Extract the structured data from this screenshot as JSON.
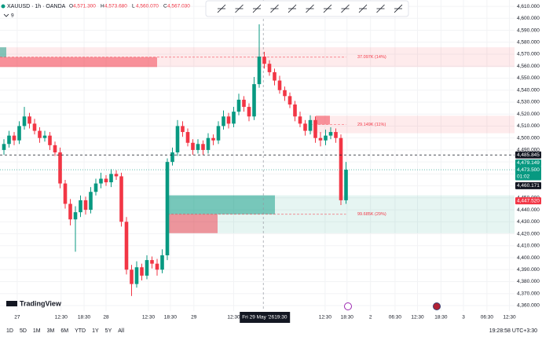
{
  "header": {
    "symbol": "XAUUSD · 1h · OANDA",
    "ohlc": [
      {
        "key": "O",
        "value": "4,571.300"
      },
      {
        "key": "H",
        "value": "4,573.680"
      },
      {
        "key": "L",
        "value": "4,560.070"
      },
      {
        "key": "C",
        "value": "4,567.030"
      }
    ],
    "indicator_count": "9"
  },
  "chart_data": {
    "type": "candlestick",
    "up_color": "#089981",
    "down_color": "#f23645",
    "grid": true,
    "open": [
      4490,
      4495,
      4502,
      4498,
      4510,
      4518,
      4512,
      4506,
      4500,
      4502,
      4494,
      4488,
      4462,
      4445,
      4432,
      4438,
      4448,
      4440,
      4455,
      4462,
      4466,
      4463,
      4470,
      4468,
      4430,
      4390,
      4378,
      4392,
      4385,
      4398,
      4395,
      4390,
      4402,
      4480,
      4488,
      4510,
      4505,
      4496,
      4490,
      4495,
      4490,
      4500,
      4498,
      4510,
      4518,
      4512,
      4522,
      4532,
      4526,
      4518,
      4545,
      4568,
      4562,
      4555,
      4548,
      4540,
      4535,
      4528,
      4518,
      4512,
      4506,
      4515,
      4500,
      4498,
      4502,
      4505,
      4500,
      4448
    ],
    "high": [
      4499,
      4506,
      4505,
      4514,
      4526,
      4521,
      4516,
      4509,
      4506,
      4505,
      4497,
      4492,
      4465,
      4449,
      4443,
      4452,
      4451,
      4459,
      4466,
      4471,
      4469,
      4474,
      4473,
      4471,
      4434,
      4394,
      4397,
      4395,
      4402,
      4401,
      4399,
      4407,
      4483,
      4492,
      4515,
      4514,
      4508,
      4499,
      4499,
      4498,
      4504,
      4503,
      4514,
      4523,
      4521,
      4526,
      4537,
      4535,
      4529,
      4551,
      4595,
      4572,
      4565,
      4558,
      4552,
      4543,
      4538,
      4531,
      4522,
      4515,
      4519,
      4518,
      4505,
      4507,
      4509,
      4508,
      4503,
      4480
    ],
    "low": [
      4486,
      4492,
      4494,
      4495,
      4507,
      4508,
      4503,
      4496,
      4497,
      4490,
      4485,
      4458,
      4441,
      4427,
      4405,
      4434,
      4436,
      4437,
      4452,
      4458,
      4460,
      4459,
      4465,
      4426,
      4386,
      4368,
      4375,
      4381,
      4382,
      4391,
      4385,
      4387,
      4398,
      4477,
      4485,
      4501,
      4493,
      4486,
      4487,
      4486,
      4487,
      4494,
      4495,
      4507,
      4508,
      4509,
      4519,
      4522,
      4514,
      4515,
      4542,
      4558,
      4552,
      4544,
      4537,
      4531,
      4525,
      4514,
      4509,
      4502,
      4503,
      4496,
      4493,
      4494,
      4499,
      4496,
      4444,
      4445
    ],
    "close": [
      4495,
      4502,
      4498,
      4510,
      4518,
      4512,
      4506,
      4500,
      4502,
      4494,
      4488,
      4462,
      4445,
      4432,
      4438,
      4448,
      4440,
      4455,
      4462,
      4466,
      4463,
      4470,
      4468,
      4430,
      4390,
      4378,
      4392,
      4385,
      4398,
      4395,
      4390,
      4402,
      4480,
      4488,
      4510,
      4505,
      4496,
      4490,
      4495,
      4490,
      4500,
      4498,
      4510,
      4518,
      4512,
      4522,
      4532,
      4526,
      4518,
      4545,
      4568,
      4562,
      4555,
      4548,
      4540,
      4535,
      4528,
      4518,
      4512,
      4506,
      4515,
      4500,
      4498,
      4502,
      4505,
      4500,
      4448,
      4473.5
    ],
    "xlim": [
      -0.77,
      100
    ],
    "xticks": [
      {
        "value": 2.6,
        "label": "27"
      },
      {
        "value": 11.2,
        "label": "12:30"
      },
      {
        "value": 15.7,
        "label": "18:30"
      },
      {
        "value": 20,
        "label": "28"
      },
      {
        "value": 28.3,
        "label": "12:30"
      },
      {
        "value": 32.6,
        "label": "18:30"
      },
      {
        "value": 37.2,
        "label": "29"
      },
      {
        "value": 45,
        "label": "12:30"
      },
      {
        "value": 62.9,
        "label": "12:30"
      },
      {
        "value": 67.2,
        "label": "18:30"
      },
      {
        "value": 71.8,
        "label": "2"
      },
      {
        "value": 76.6,
        "label": "06:30"
      },
      {
        "value": 81,
        "label": "12:30"
      },
      {
        "value": 85.6,
        "label": "18:30"
      },
      {
        "value": 90,
        "label": "3"
      },
      {
        "value": 94.6,
        "label": "06:30"
      },
      {
        "value": 99,
        "label": "12:30"
      }
    ],
    "ylim": [
      4355.4,
      4615.3
    ],
    "yticks": [
      {
        "value": 4360,
        "label": "4,360.000"
      },
      {
        "value": 4370,
        "label": "4,370.000"
      },
      {
        "value": 4380,
        "label": "4,380.000"
      },
      {
        "value": 4390,
        "label": "4,390.000"
      },
      {
        "value": 4400,
        "label": "4,400.000"
      },
      {
        "value": 4410,
        "label": "4,410.000"
      },
      {
        "value": 4420,
        "label": "4,420.000"
      },
      {
        "value": 4430,
        "label": "4,430.000"
      },
      {
        "value": 4440,
        "label": "4,440.000"
      },
      {
        "value": 4450,
        "label": "4,450.000"
      },
      {
        "value": 4460,
        "label": "4,460.000"
      },
      {
        "value": 4470,
        "label": "4,470.000"
      },
      {
        "value": 4480,
        "label": "4,480.000"
      },
      {
        "value": 4490,
        "label": "4,490.000"
      },
      {
        "value": 4500,
        "label": "4,500.000"
      },
      {
        "value": 4510,
        "label": "4,510.000"
      },
      {
        "value": 4520,
        "label": "4,520.000"
      },
      {
        "value": 4530,
        "label": "4,530.000"
      },
      {
        "value": 4540,
        "label": "4,540.000"
      },
      {
        "value": 4550,
        "label": "4,550.000"
      },
      {
        "value": 4560,
        "label": "4,560.000"
      },
      {
        "value": 4570,
        "label": "4,570.000"
      },
      {
        "value": 4580,
        "label": "4,580.000"
      },
      {
        "value": 4590,
        "label": "4,590.000"
      },
      {
        "value": 4600,
        "label": "4,600.000"
      },
      {
        "value": 4610,
        "label": "4,610.000"
      }
    ],
    "zones": [
      {
        "from": -0.77,
        "low": 4559.3,
        "high": 4575.8,
        "label": "37.097K (14%)",
        "color": "#f23645"
      },
      {
        "from": 60,
        "low": 4504,
        "high": 4518.6,
        "label": "29.149K (11%)",
        "color": "#f23645"
      },
      {
        "from": 32,
        "low": 4420.5,
        "high": 4452.1,
        "label": "99.685K (29%)",
        "color": "#089981"
      }
    ],
    "price_labels": [
      {
        "value": 4485.845,
        "label": "4,485.845",
        "color": "#131722",
        "line": "dashed"
      },
      {
        "value": 4479.149,
        "label": "4,479.149",
        "color": "#089981"
      },
      {
        "value": 4473.5,
        "label": "4,473.500",
        "color": "#089981",
        "countdown": "01:02",
        "line": "dotted"
      },
      {
        "value": 4460.171,
        "label": "4,460.171",
        "color": "#131722"
      },
      {
        "value": 4447.52,
        "label": "4,447.520",
        "color": "#f23645"
      }
    ],
    "crosshair": {
      "x": 50.8,
      "date": "Fri 29 May '26",
      "time": "19:30"
    }
  },
  "footer": {
    "ranges": [
      "1D",
      "5D",
      "1M",
      "3M",
      "6M",
      "YTD",
      "1Y",
      "5Y",
      "All"
    ],
    "clock": "19:28:58 UTC+3:30",
    "brand": "TradingView"
  }
}
